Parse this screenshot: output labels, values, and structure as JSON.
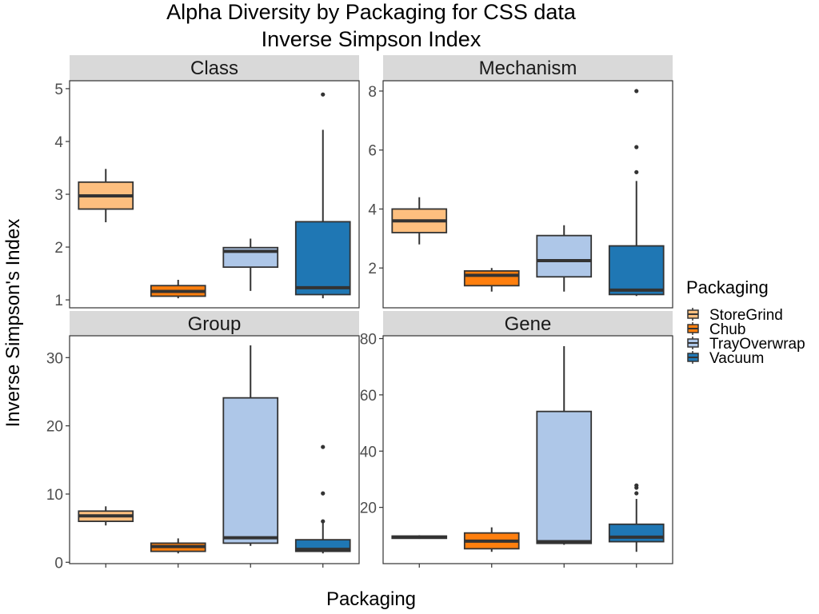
{
  "chart_data": {
    "type": "box",
    "title": "Alpha Diversity by Packaging for CSS data",
    "subtitle": "Inverse Simpson Index",
    "xlabel": "Packaging",
    "ylabel": "Inverse Simpson's Index",
    "legend": {
      "title": "Packaging",
      "position": "right",
      "entries": [
        {
          "name": "StoreGrind",
          "color": "#FDBF7F"
        },
        {
          "name": "Chub",
          "color": "#FF7F0E"
        },
        {
          "name": "TrayOverwrap",
          "color": "#AEC7E8"
        },
        {
          "name": "Vacuum",
          "color": "#1F77B4"
        }
      ]
    },
    "categories": [
      "StoreGrind",
      "Chub",
      "TrayOverwrap",
      "Vacuum"
    ],
    "grid": false,
    "panels": [
      {
        "name": "Class",
        "ylim": [
          0.85,
          5.15
        ],
        "yticks": [
          1,
          2,
          3,
          4,
          5
        ],
        "boxes": [
          {
            "category": "StoreGrind",
            "min": 2.47,
            "q1": 2.72,
            "median": 2.97,
            "q3": 3.23,
            "max": 3.48,
            "outliers": []
          },
          {
            "category": "Chub",
            "min": 1.03,
            "q1": 1.07,
            "median": 1.16,
            "q3": 1.27,
            "max": 1.38,
            "outliers": []
          },
          {
            "category": "TrayOverwrap",
            "min": 1.17,
            "q1": 1.62,
            "median": 1.92,
            "q3": 1.99,
            "max": 2.16,
            "outliers": []
          },
          {
            "category": "Vacuum",
            "min": 1.03,
            "q1": 1.1,
            "median": 1.23,
            "q3": 2.48,
            "max": 4.22,
            "outliers": [
              4.89
            ]
          }
        ]
      },
      {
        "name": "Mechanism",
        "ylim": [
          0.65,
          8.35
        ],
        "yticks": [
          2,
          4,
          6,
          8
        ],
        "boxes": [
          {
            "category": "StoreGrind",
            "min": 2.8,
            "q1": 3.2,
            "median": 3.6,
            "q3": 4.0,
            "max": 4.4,
            "outliers": []
          },
          {
            "category": "Chub",
            "min": 1.2,
            "q1": 1.4,
            "median": 1.75,
            "q3": 1.9,
            "max": 2.0,
            "outliers": []
          },
          {
            "category": "TrayOverwrap",
            "min": 1.2,
            "q1": 1.7,
            "median": 2.25,
            "q3": 3.1,
            "max": 3.45,
            "outliers": []
          },
          {
            "category": "Vacuum",
            "min": 1.05,
            "q1": 1.1,
            "median": 1.25,
            "q3": 2.75,
            "max": 4.95,
            "outliers": [
              5.25,
              6.1,
              8.0
            ]
          }
        ]
      },
      {
        "name": "Group",
        "ylim": [
          -0.2,
          33.2
        ],
        "yticks": [
          0,
          10,
          20,
          30
        ],
        "boxes": [
          {
            "category": "StoreGrind",
            "min": 5.4,
            "q1": 6.0,
            "median": 6.8,
            "q3": 7.5,
            "max": 8.2,
            "outliers": []
          },
          {
            "category": "Chub",
            "min": 1.3,
            "q1": 1.6,
            "median": 2.3,
            "q3": 2.8,
            "max": 3.5,
            "outliers": []
          },
          {
            "category": "TrayOverwrap",
            "min": 2.4,
            "q1": 2.8,
            "median": 3.6,
            "q3": 24.1,
            "max": 31.8,
            "outliers": []
          },
          {
            "category": "Vacuum",
            "min": 1.3,
            "q1": 1.6,
            "median": 1.9,
            "q3": 3.3,
            "max": 5.9,
            "outliers": [
              6.0,
              10.1,
              16.9
            ]
          }
        ]
      },
      {
        "name": "Gene",
        "ylim": [
          0,
          81
        ],
        "yticks": [
          20,
          40,
          60,
          80
        ],
        "boxes": [
          {
            "category": "StoreGrind",
            "min": 8.8,
            "q1": 9.0,
            "median": 9.4,
            "q3": 9.8,
            "max": 10.1,
            "outliers": []
          },
          {
            "category": "Chub",
            "min": 4.2,
            "q1": 5.3,
            "median": 8.0,
            "q3": 10.9,
            "max": 12.9,
            "outliers": []
          },
          {
            "category": "TrayOverwrap",
            "min": 6.7,
            "q1": 7.2,
            "median": 7.8,
            "q3": 54.1,
            "max": 77.3,
            "outliers": []
          },
          {
            "category": "Vacuum",
            "min": 4.2,
            "q1": 7.8,
            "median": 9.4,
            "q3": 14.0,
            "max": 23.0,
            "outliers": [
              25.0,
              27.0,
              27.8
            ]
          }
        ]
      }
    ]
  }
}
